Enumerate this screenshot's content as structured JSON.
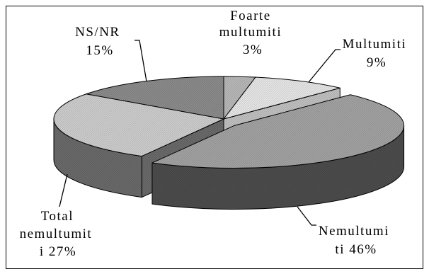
{
  "chart_data": {
    "type": "pie",
    "three_d": true,
    "slices": [
      {
        "label_lines": [
          "Foarte",
          "multumiti",
          "3%"
        ],
        "value": 3,
        "color": "#bdbdbd",
        "side_color": "#8a8a8a",
        "exploded": false
      },
      {
        "label_lines": [
          "Multumiti",
          "9%"
        ],
        "value": 9,
        "color": "#ededed",
        "side_color": "#c6c6c6",
        "exploded": false
      },
      {
        "label_lines": [
          "Nemultumi",
          "ti 46%"
        ],
        "value": 46,
        "color": "#a7a7a7",
        "side_color": "#4e4e4e",
        "exploded": true
      },
      {
        "label_lines": [
          "Total",
          "nemultumit",
          "i 27%"
        ],
        "value": 27,
        "color": "#d3d3d3",
        "side_color": "#6d6d6d",
        "exploded": false
      },
      {
        "label_lines": [
          "NS/NR",
          "15%"
        ],
        "value": 15,
        "color": "#8f8f8f",
        "side_color": "#5d5d5d",
        "exploded": false
      }
    ]
  }
}
